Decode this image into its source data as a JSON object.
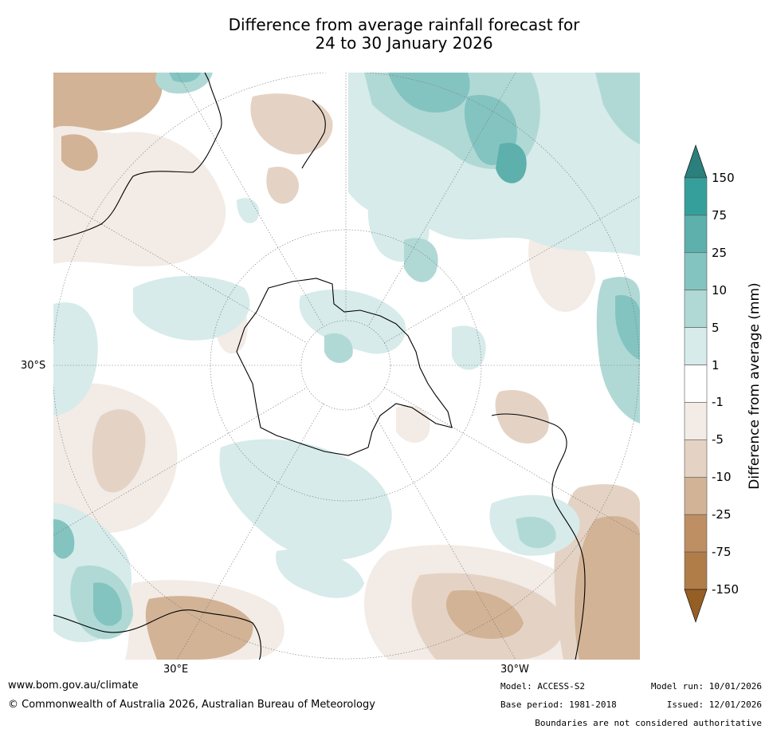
{
  "title_line1": "Difference from average rainfall forecast for",
  "title_line2": "24 to 30 January 2026",
  "map": {
    "projection": "south polar stereographic",
    "lat_label": "30°S",
    "lon_labels": [
      "30°E",
      "30°W"
    ]
  },
  "colorbar": {
    "title": "Difference from average (mm)",
    "ticks": [
      "150",
      "75",
      "25",
      "10",
      "5",
      "1",
      "-1",
      "-5",
      "-10",
      "-25",
      "-75",
      "-150"
    ],
    "colors": [
      "#2b7f7c",
      "#35a09b",
      "#5db0ac",
      "#84c4c0",
      "#b0d9d6",
      "#d6ebea",
      "#ffffff",
      "#f3ebe5",
      "#e4d3c4",
      "#d2b396",
      "#be8f63",
      "#b07c48",
      "#955e25"
    ]
  },
  "footer": {
    "url": "www.bom.gov.au/climate",
    "copyright": "© Commonwealth of Australia 2026, Australian Bureau of Meteorology",
    "model": "Model: ACCESS-S2",
    "base_period": "Base period: 1981-2018",
    "model_run": "Model run: 10/01/2026",
    "issued": "Issued: 12/01/2026",
    "disclaimer": "Boundaries are not considered authoritative"
  }
}
